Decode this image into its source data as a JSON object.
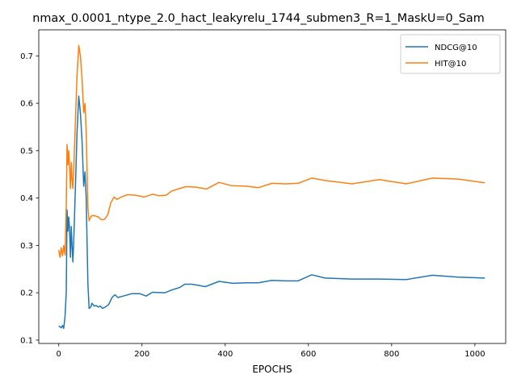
{
  "chart_data": {
    "type": "line",
    "title": "nmax_0.0001_ntype_2.0_hact_leakyrelu_1744_submen3_R=1_MaskU=0_Sam",
    "xlabel": "EPOCHS",
    "ylabel": "",
    "xlim": [
      -48,
      1074
    ],
    "ylim": [
      0.093,
      0.755
    ],
    "xticks": [
      0,
      200,
      400,
      600,
      800,
      1000
    ],
    "yticks": [
      0.1,
      0.2,
      0.3,
      0.4,
      0.5,
      0.6,
      0.7
    ],
    "ytick_labels": [
      "0.1",
      "0.2",
      "0.3",
      "0.4",
      "0.5",
      "0.6",
      "0.7"
    ],
    "grid": false,
    "legend_position": "top-right",
    "series": [
      {
        "name": "NDCG@10",
        "color": "#1f77b4",
        "points": [
          [
            0,
            0.13
          ],
          [
            3,
            0.128
          ],
          [
            6,
            0.126
          ],
          [
            9,
            0.131
          ],
          [
            12,
            0.125
          ],
          [
            15,
            0.15
          ],
          [
            18,
            0.2
          ],
          [
            20,
            0.375
          ],
          [
            22,
            0.33
          ],
          [
            24,
            0.36
          ],
          [
            26,
            0.335
          ],
          [
            28,
            0.275
          ],
          [
            30,
            0.34
          ],
          [
            32,
            0.3
          ],
          [
            34,
            0.265
          ],
          [
            36,
            0.31
          ],
          [
            40,
            0.42
          ],
          [
            44,
            0.54
          ],
          [
            48,
            0.615
          ],
          [
            52,
            0.58
          ],
          [
            56,
            0.52
          ],
          [
            60,
            0.425
          ],
          [
            63,
            0.455
          ],
          [
            66,
            0.4
          ],
          [
            70,
            0.22
          ],
          [
            73,
            0.167
          ],
          [
            77,
            0.17
          ],
          [
            80,
            0.178
          ],
          [
            85,
            0.172
          ],
          [
            90,
            0.173
          ],
          [
            95,
            0.17
          ],
          [
            100,
            0.172
          ],
          [
            105,
            0.167
          ],
          [
            112,
            0.17
          ],
          [
            120,
            0.175
          ],
          [
            128,
            0.19
          ],
          [
            135,
            0.196
          ],
          [
            142,
            0.19
          ],
          [
            155,
            0.193
          ],
          [
            175,
            0.198
          ],
          [
            195,
            0.198
          ],
          [
            210,
            0.193
          ],
          [
            225,
            0.201
          ],
          [
            255,
            0.2
          ],
          [
            272,
            0.206
          ],
          [
            290,
            0.211
          ],
          [
            303,
            0.218
          ],
          [
            320,
            0.218
          ],
          [
            352,
            0.213
          ],
          [
            385,
            0.224
          ],
          [
            418,
            0.22
          ],
          [
            450,
            0.221
          ],
          [
            480,
            0.221
          ],
          [
            512,
            0.226
          ],
          [
            545,
            0.225
          ],
          [
            575,
            0.225
          ],
          [
            608,
            0.238
          ],
          [
            640,
            0.231
          ],
          [
            705,
            0.229
          ],
          [
            770,
            0.229
          ],
          [
            835,
            0.228
          ],
          [
            898,
            0.237
          ],
          [
            960,
            0.233
          ],
          [
            1024,
            0.231
          ]
        ]
      },
      {
        "name": "HIT@10",
        "color": "#ff7f0e",
        "points": [
          [
            0,
            0.29
          ],
          [
            3,
            0.275
          ],
          [
            6,
            0.295
          ],
          [
            9,
            0.278
          ],
          [
            12,
            0.3
          ],
          [
            15,
            0.28
          ],
          [
            18,
            0.38
          ],
          [
            20,
            0.513
          ],
          [
            22,
            0.47
          ],
          [
            24,
            0.5
          ],
          [
            26,
            0.47
          ],
          [
            28,
            0.42
          ],
          [
            30,
            0.475
          ],
          [
            32,
            0.44
          ],
          [
            34,
            0.42
          ],
          [
            36,
            0.46
          ],
          [
            40,
            0.56
          ],
          [
            44,
            0.66
          ],
          [
            48,
            0.722
          ],
          [
            52,
            0.7
          ],
          [
            56,
            0.65
          ],
          [
            60,
            0.58
          ],
          [
            63,
            0.6
          ],
          [
            66,
            0.54
          ],
          [
            70,
            0.38
          ],
          [
            73,
            0.352
          ],
          [
            77,
            0.36
          ],
          [
            80,
            0.363
          ],
          [
            88,
            0.362
          ],
          [
            95,
            0.36
          ],
          [
            100,
            0.356
          ],
          [
            105,
            0.354
          ],
          [
            110,
            0.355
          ],
          [
            118,
            0.365
          ],
          [
            125,
            0.39
          ],
          [
            133,
            0.402
          ],
          [
            140,
            0.397
          ],
          [
            150,
            0.402
          ],
          [
            165,
            0.407
          ],
          [
            185,
            0.406
          ],
          [
            205,
            0.402
          ],
          [
            225,
            0.408
          ],
          [
            240,
            0.405
          ],
          [
            258,
            0.406
          ],
          [
            272,
            0.415
          ],
          [
            290,
            0.42
          ],
          [
            305,
            0.424
          ],
          [
            330,
            0.423
          ],
          [
            355,
            0.419
          ],
          [
            385,
            0.433
          ],
          [
            415,
            0.426
          ],
          [
            450,
            0.425
          ],
          [
            480,
            0.422
          ],
          [
            512,
            0.431
          ],
          [
            545,
            0.43
          ],
          [
            575,
            0.431
          ],
          [
            608,
            0.442
          ],
          [
            640,
            0.437
          ],
          [
            705,
            0.43
          ],
          [
            770,
            0.439
          ],
          [
            835,
            0.43
          ],
          [
            898,
            0.442
          ],
          [
            960,
            0.44
          ],
          [
            1024,
            0.432
          ]
        ]
      }
    ]
  }
}
